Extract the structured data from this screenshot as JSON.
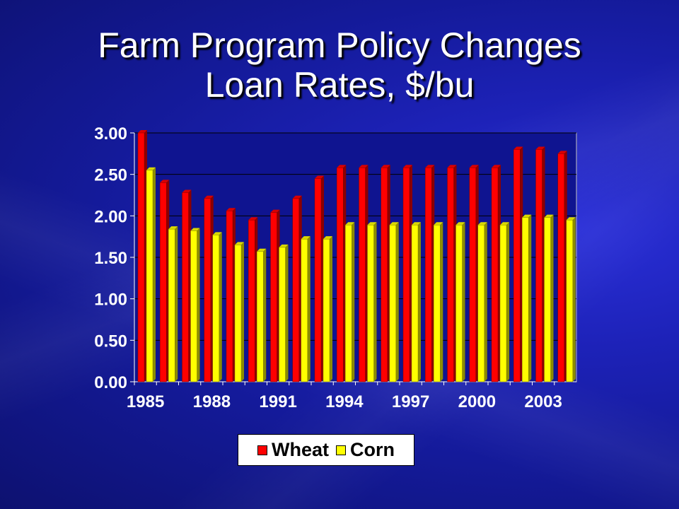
{
  "title_line1": "Farm Program Policy Changes",
  "title_line2": "Loan Rates, $/bu",
  "colors": {
    "wheat": "#ff0000",
    "corn": "#ffff00",
    "plot_bg": "#0f1490",
    "axis_text": "#ffffff"
  },
  "chart_data": {
    "type": "bar",
    "title": "Farm Program Policy Changes Loan Rates, $/bu",
    "categories": [
      "1985",
      "1986",
      "1987",
      "1988",
      "1989",
      "1990",
      "1991",
      "1992",
      "1993",
      "1994",
      "1995",
      "1996",
      "1997",
      "1998",
      "1999",
      "2000",
      "2001",
      "2002",
      "2003",
      "2004"
    ],
    "x_tick_labels": [
      "1985",
      "1988",
      "1991",
      "1994",
      "1997",
      "2000",
      "2003"
    ],
    "y_tick_labels": [
      "0.00",
      "0.50",
      "1.00",
      "1.50",
      "2.00",
      "2.50",
      "3.00"
    ],
    "ylim": [
      0,
      3
    ],
    "grid": true,
    "legend_position": "bottom",
    "series": [
      {
        "name": "Wheat",
        "values": [
          3.0,
          2.4,
          2.28,
          2.21,
          2.06,
          1.95,
          2.04,
          2.21,
          2.45,
          2.58,
          2.58,
          2.58,
          2.58,
          2.58,
          2.58,
          2.58,
          2.58,
          2.8,
          2.8,
          2.75
        ]
      },
      {
        "name": "Corn",
        "values": [
          2.55,
          1.84,
          1.82,
          1.77,
          1.65,
          1.57,
          1.62,
          1.72,
          1.72,
          1.89,
          1.89,
          1.89,
          1.89,
          1.89,
          1.89,
          1.89,
          1.89,
          1.98,
          1.98,
          1.95
        ]
      }
    ]
  }
}
